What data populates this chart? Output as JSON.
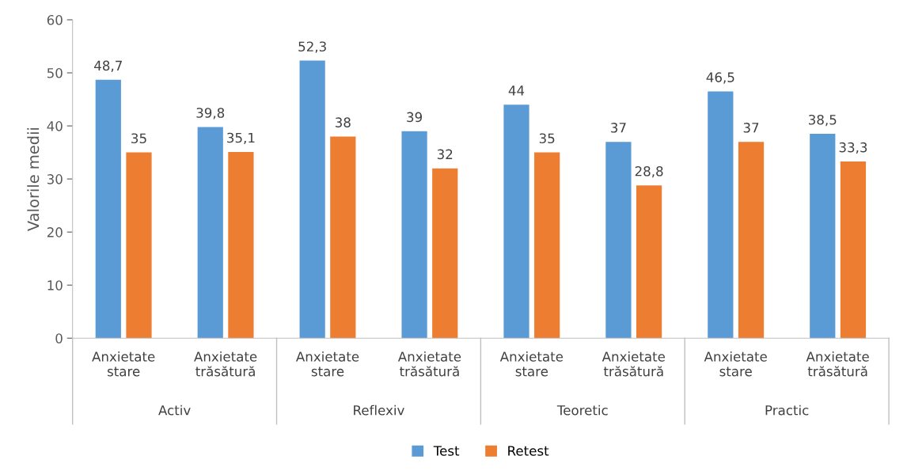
{
  "chart_data": {
    "type": "bar",
    "ylabel": "Valorile medii",
    "categories": [
      "Anxietate stare",
      "Anxietate trăsătură",
      "Anxietate stare",
      "Anxietate trăsătură",
      "Anxietate stare",
      "Anxietate trăsătură",
      "Anxietate stare",
      "Anxietate trăsătură"
    ],
    "series": [
      {
        "name": "Test",
        "color": "#5b9bd5",
        "values": [
          48.7,
          39.8,
          52.3,
          39,
          44,
          37,
          46.5,
          38.5
        ],
        "value_labels": [
          "48,7",
          "39,8",
          "52,3",
          "39",
          "44",
          "37",
          "46,5",
          "38,5"
        ]
      },
      {
        "name": "Retest",
        "color": "#ed7d31",
        "values": [
          35,
          35.1,
          38,
          32,
          35,
          28.8,
          37,
          33.3
        ],
        "value_labels": [
          "35",
          "35,1",
          "38",
          "32",
          "35",
          "28,8",
          "37",
          "33,3"
        ]
      }
    ],
    "annotations": [
      "Activ",
      "Reflexiv",
      "Teoretic",
      "Practic"
    ],
    "ylim": [
      0,
      60
    ],
    "yticks": [
      0,
      10,
      20,
      30,
      40,
      50,
      60
    ],
    "grid": false,
    "legend": "bottom"
  }
}
